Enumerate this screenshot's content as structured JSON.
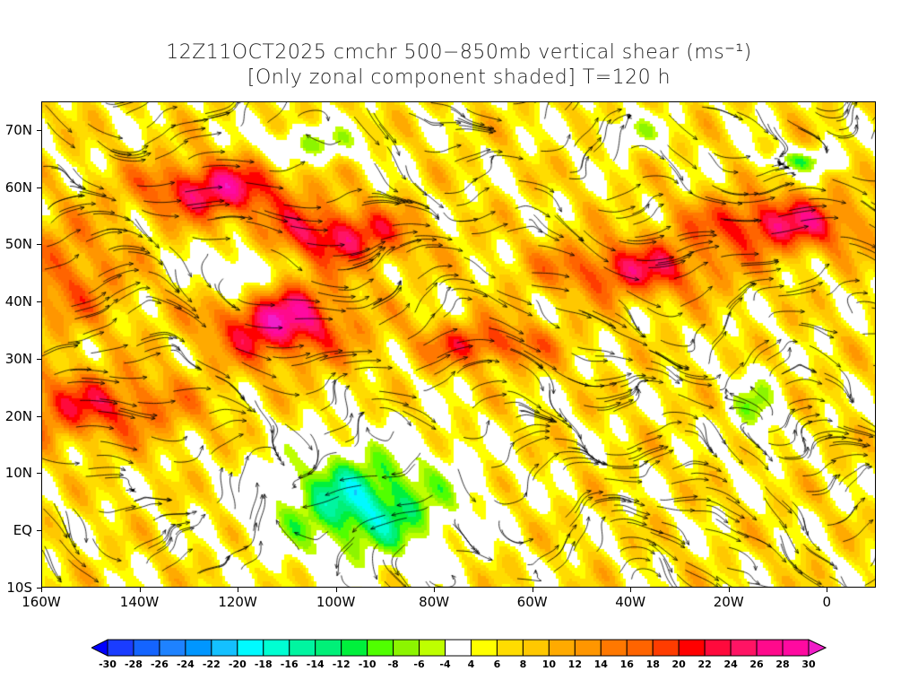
{
  "title": {
    "line1": "12Z11OCT2025 cmchr 500−850mb vertical shear (ms⁻¹)",
    "line2": "[Only zonal component shaded] T=120 h"
  },
  "map": {
    "lon_range": [
      -160,
      10
    ],
    "lat_range": [
      -10,
      75
    ],
    "lat_labels": [
      {
        "v": 70,
        "t": "70N"
      },
      {
        "v": 60,
        "t": "60N"
      },
      {
        "v": 50,
        "t": "50N"
      },
      {
        "v": 40,
        "t": "40N"
      },
      {
        "v": 30,
        "t": "30N"
      },
      {
        "v": 20,
        "t": "20N"
      },
      {
        "v": 10,
        "t": "10N"
      },
      {
        "v": 0,
        "t": "EQ"
      },
      {
        "v": -10,
        "t": "10S"
      }
    ],
    "lon_labels": [
      {
        "v": -160,
        "t": "160W"
      },
      {
        "v": -140,
        "t": "140W"
      },
      {
        "v": -120,
        "t": "120W"
      },
      {
        "v": -100,
        "t": "100W"
      },
      {
        "v": -80,
        "t": "80W"
      },
      {
        "v": -60,
        "t": "60W"
      },
      {
        "v": -40,
        "t": "40W"
      },
      {
        "v": -20,
        "t": "20W"
      },
      {
        "v": 0,
        "t": "0"
      }
    ]
  },
  "colorbar": {
    "labels": [
      "-30",
      "-28",
      "-26",
      "-24",
      "-22",
      "-20",
      "-18",
      "-16",
      "-14",
      "-12",
      "-10",
      "-8",
      "-6",
      "-4",
      "4",
      "6",
      "8",
      "10",
      "12",
      "14",
      "16",
      "18",
      "20",
      "22",
      "24",
      "26",
      "28",
      "30"
    ],
    "colors": [
      "#1a3cff",
      "#1464ff",
      "#1e82ff",
      "#0096ff",
      "#14c0ff",
      "#00faff",
      "#00ffd2",
      "#00f5a0",
      "#00f078",
      "#00f03c",
      "#50ff00",
      "#8cf500",
      "#beff00",
      "#ffffff",
      "#ffff00",
      "#ffdc00",
      "#ffc800",
      "#ffaa00",
      "#ff9600",
      "#ff7800",
      "#ff6400",
      "#ff3c00",
      "#ff0000",
      "#ff0a3c",
      "#ff1464",
      "#ff0a8c",
      "#ff0aa0"
    ],
    "low_color": "#0000ff",
    "high_color": "#f01ec8"
  }
}
